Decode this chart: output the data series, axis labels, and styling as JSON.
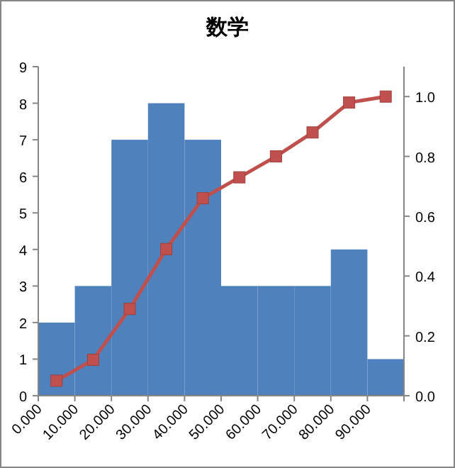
{
  "chart_data": {
    "type": "histogram",
    "title": "数学",
    "bins": [
      0,
      10,
      20,
      30,
      40,
      50,
      60,
      70,
      80,
      90,
      100
    ],
    "values": [
      2,
      3,
      7,
      8,
      7,
      3,
      3,
      3,
      4,
      1
    ],
    "color": "#4f81bd",
    "xlim": [
      0,
      100
    ],
    "xticks": [
      {
        "value": 0,
        "label": "0.000"
      },
      {
        "value": 10,
        "label": "10.000"
      },
      {
        "value": 20,
        "label": "20.000"
      },
      {
        "value": 30,
        "label": "30.000"
      },
      {
        "value": 40,
        "label": "40.000"
      },
      {
        "value": 50,
        "label": "50.000"
      },
      {
        "value": 60,
        "label": "60.000"
      },
      {
        "value": 70,
        "label": "70.000"
      },
      {
        "value": 80,
        "label": "80.000"
      },
      {
        "value": 90,
        "label": "90.000"
      },
      {
        "value": 100,
        "label": null
      }
    ],
    "ylim": [
      0,
      9
    ],
    "yticks": [
      0,
      1,
      2,
      3,
      4,
      5,
      6,
      7,
      8,
      9
    ],
    "y2lim": [
      0,
      1.1
    ],
    "y2ticks": [
      {
        "value": 0,
        "label": "0.0"
      },
      {
        "value": 0.2,
        "label": "0.2"
      },
      {
        "value": 0.4,
        "label": "0.4"
      },
      {
        "value": 0.6,
        "label": "0.6"
      },
      {
        "value": 0.8,
        "label": "0.8"
      },
      {
        "value": 1,
        "label": "1.0"
      }
    ],
    "series": [
      {
        "type": "line",
        "axis": "y2",
        "color": "#c0504d",
        "x": [
          5,
          15,
          25,
          35,
          45,
          55,
          65,
          75,
          85,
          95
        ],
        "values": [
          0.05,
          0.12,
          0.29,
          0.49,
          0.66,
          0.73,
          0.8,
          0.88,
          0.98,
          1.0
        ]
      }
    ],
    "marker": "square",
    "line_style": "solid",
    "grid": false
  }
}
